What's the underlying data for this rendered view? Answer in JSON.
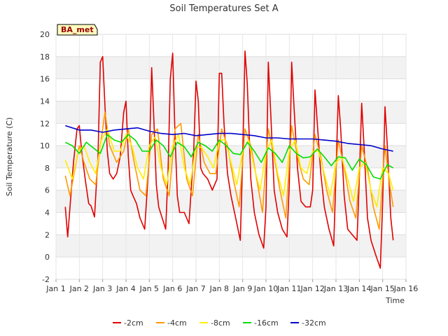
{
  "chart_data": {
    "type": "line",
    "title": "Soil Temperatures Set A",
    "xlabel": "Time",
    "ylabel": "Soil Temperature (C)",
    "badge": "BA_met",
    "xlim": [
      1,
      16
    ],
    "ylim": [
      -2,
      20
    ],
    "xticks": [
      {
        "v": 1,
        "label": "Jan 1"
      },
      {
        "v": 2,
        "label": "Jan 2"
      },
      {
        "v": 3,
        "label": "Jan 3"
      },
      {
        "v": 4,
        "label": "Jan 4"
      },
      {
        "v": 5,
        "label": "Jan 5"
      },
      {
        "v": 6,
        "label": "Jan 6"
      },
      {
        "v": 7,
        "label": "Jan 7"
      },
      {
        "v": 8,
        "label": "Jan 8"
      },
      {
        "v": 9,
        "label": "Jan 9"
      },
      {
        "v": 10,
        "label": "Jan 10"
      },
      {
        "v": 11,
        "label": "Jan 11"
      },
      {
        "v": 12,
        "label": "Jan 12"
      },
      {
        "v": 13,
        "label": "Jan 13"
      },
      {
        "v": 14,
        "label": "Jan 14"
      },
      {
        "v": 15,
        "label": "Jan 15"
      },
      {
        "v": 16,
        "label": "Jan 16"
      }
    ],
    "yticks": [
      -2,
      0,
      2,
      4,
      6,
      8,
      10,
      12,
      14,
      16,
      18,
      20
    ],
    "grid": true,
    "legend": "bottom",
    "series": [
      {
        "name": "-2cm",
        "color": "#e00000",
        "x": [
          1.4,
          1.5,
          1.6,
          1.75,
          1.9,
          2.0,
          2.1,
          2.25,
          2.4,
          2.5,
          2.65,
          2.8,
          2.9,
          3.0,
          3.1,
          3.2,
          3.3,
          3.45,
          3.6,
          3.75,
          3.9,
          4.0,
          4.1,
          4.2,
          4.3,
          4.45,
          4.6,
          4.8,
          5.0,
          5.1,
          5.2,
          5.3,
          5.4,
          5.55,
          5.7,
          5.8,
          5.9,
          6.0,
          6.1,
          6.2,
          6.3,
          6.5,
          6.7,
          6.9,
          7.0,
          7.1,
          7.2,
          7.3,
          7.5,
          7.7,
          7.9,
          8.0,
          8.1,
          8.2,
          8.35,
          8.5,
          8.7,
          8.9,
          9.0,
          9.1,
          9.2,
          9.35,
          9.5,
          9.7,
          9.9,
          10.0,
          10.1,
          10.2,
          10.35,
          10.5,
          10.7,
          10.9,
          11.0,
          11.1,
          11.2,
          11.35,
          11.5,
          11.7,
          11.9,
          12.0,
          12.1,
          12.2,
          12.35,
          12.5,
          12.7,
          12.9,
          13.0,
          13.1,
          13.2,
          13.35,
          13.5,
          13.7,
          13.9,
          14.0,
          14.1,
          14.2,
          14.35,
          14.5,
          14.7,
          14.9,
          15.0,
          15.1,
          15.2,
          15.35,
          15.45
        ],
        "y": [
          4.5,
          1.8,
          4.5,
          8.5,
          11.5,
          11.8,
          9.5,
          7.0,
          4.8,
          4.6,
          3.6,
          9.0,
          17.5,
          18.0,
          13.5,
          9.5,
          7.5,
          7.0,
          7.5,
          9.0,
          13.0,
          14.0,
          9.0,
          6.0,
          5.5,
          4.8,
          3.5,
          2.5,
          9.0,
          17.0,
          12.0,
          6.5,
          4.5,
          3.5,
          2.5,
          7.5,
          16.0,
          18.3,
          11.0,
          5.5,
          4.0,
          4.0,
          3.0,
          9.5,
          15.8,
          14.0,
          8.0,
          7.5,
          7.0,
          6.0,
          7.0,
          16.5,
          16.5,
          12.0,
          7.5,
          5.5,
          3.5,
          1.5,
          9.0,
          18.5,
          15.5,
          7.0,
          4.0,
          2.0,
          0.8,
          4.5,
          17.5,
          13.0,
          6.0,
          4.0,
          2.5,
          1.8,
          6.5,
          17.5,
          13.5,
          8.0,
          5.0,
          4.5,
          4.5,
          6.0,
          15.0,
          12.0,
          7.5,
          4.5,
          2.5,
          1.0,
          7.5,
          14.5,
          11.5,
          5.5,
          2.5,
          2.0,
          1.5,
          7.0,
          13.8,
          10.0,
          3.5,
          1.5,
          0.2,
          -1.0,
          5.0,
          13.5,
          10.0,
          3.5,
          1.5
        ]
      },
      {
        "name": "-4cm",
        "color": "#ff9900",
        "x": [
          1.4,
          1.6,
          1.8,
          2.0,
          2.2,
          2.45,
          2.7,
          2.9,
          3.1,
          3.3,
          3.6,
          3.9,
          4.1,
          4.35,
          4.6,
          4.85,
          5.1,
          5.35,
          5.6,
          5.85,
          6.1,
          6.35,
          6.6,
          6.85,
          7.1,
          7.35,
          7.6,
          7.85,
          8.1,
          8.35,
          8.6,
          8.85,
          9.1,
          9.35,
          9.6,
          9.85,
          10.1,
          10.35,
          10.6,
          10.85,
          11.1,
          11.35,
          11.6,
          11.85,
          12.1,
          12.35,
          12.6,
          12.85,
          13.1,
          13.35,
          13.6,
          13.85,
          14.1,
          14.35,
          14.6,
          14.85,
          15.1,
          15.3,
          15.45
        ],
        "y": [
          7.3,
          5.5,
          7.8,
          10.0,
          8.5,
          7.0,
          6.5,
          10.0,
          13.0,
          10.0,
          8.5,
          9.5,
          11.5,
          8.5,
          6.0,
          5.5,
          11.0,
          11.5,
          7.0,
          5.5,
          11.5,
          12.0,
          7.0,
          5.5,
          11.0,
          8.5,
          7.5,
          7.5,
          11.5,
          10.0,
          7.0,
          4.5,
          11.5,
          10.0,
          7.0,
          4.0,
          11.5,
          9.0,
          6.0,
          3.5,
          11.8,
          9.0,
          7.0,
          6.5,
          11.0,
          9.0,
          6.0,
          4.0,
          10.5,
          8.0,
          5.0,
          3.5,
          10.0,
          8.0,
          4.5,
          2.5,
          10.0,
          6.5,
          4.5
        ]
      },
      {
        "name": "-8cm",
        "color": "#ffee00",
        "x": [
          1.4,
          1.7,
          1.95,
          2.2,
          2.45,
          2.7,
          2.95,
          3.2,
          3.5,
          3.75,
          4.0,
          4.25,
          4.5,
          4.75,
          5.0,
          5.25,
          5.5,
          5.75,
          6.0,
          6.25,
          6.5,
          6.75,
          7.0,
          7.25,
          7.5,
          7.75,
          8.0,
          8.25,
          8.5,
          8.75,
          9.0,
          9.25,
          9.5,
          9.75,
          10.0,
          10.25,
          10.5,
          10.75,
          11.0,
          11.25,
          11.5,
          11.75,
          12.0,
          12.25,
          12.5,
          12.75,
          13.0,
          13.25,
          13.5,
          13.75,
          14.0,
          14.25,
          14.5,
          14.75,
          15.0,
          15.25,
          15.45
        ],
        "y": [
          8.7,
          7.0,
          9.5,
          10.0,
          8.5,
          7.5,
          10.5,
          11.5,
          9.5,
          9.5,
          11.0,
          10.0,
          8.0,
          7.0,
          10.0,
          10.8,
          8.0,
          6.5,
          10.0,
          11.0,
          8.0,
          6.5,
          10.0,
          9.8,
          9.0,
          8.0,
          10.5,
          10.5,
          8.5,
          6.5,
          9.5,
          10.5,
          8.0,
          6.0,
          9.5,
          10.5,
          7.5,
          5.5,
          9.5,
          10.5,
          8.0,
          7.5,
          9.5,
          9.5,
          7.5,
          5.5,
          8.5,
          9.0,
          7.0,
          5.0,
          8.0,
          8.5,
          6.0,
          4.5,
          8.0,
          7.5,
          6.0
        ]
      },
      {
        "name": "-16cm",
        "color": "#00dd00",
        "x": [
          1.4,
          1.7,
          2.0,
          2.3,
          2.6,
          2.9,
          3.2,
          3.5,
          3.8,
          4.1,
          4.4,
          4.7,
          5.0,
          5.3,
          5.6,
          5.9,
          6.2,
          6.5,
          6.8,
          7.1,
          7.4,
          7.7,
          8.0,
          8.3,
          8.6,
          8.9,
          9.2,
          9.5,
          9.8,
          10.1,
          10.4,
          10.7,
          11.0,
          11.3,
          11.6,
          11.9,
          12.2,
          12.5,
          12.8,
          13.1,
          13.4,
          13.7,
          14.0,
          14.3,
          14.6,
          14.9,
          15.2,
          15.45
        ],
        "y": [
          10.3,
          10.0,
          9.3,
          10.3,
          9.8,
          9.3,
          11.0,
          10.5,
          10.3,
          11.0,
          10.5,
          9.5,
          9.5,
          10.5,
          10.0,
          9.0,
          10.3,
          9.9,
          9.0,
          10.3,
          10.0,
          9.5,
          10.5,
          10.0,
          9.3,
          9.2,
          10.3,
          9.5,
          8.5,
          9.8,
          9.3,
          8.5,
          10.0,
          9.3,
          8.9,
          9.0,
          9.7,
          9.0,
          8.2,
          9.0,
          8.9,
          7.8,
          8.8,
          8.3,
          7.2,
          7.0,
          8.3,
          8.0
        ]
      },
      {
        "name": "-32cm",
        "color": "#0000cc",
        "x": [
          1.4,
          2.0,
          2.5,
          3.0,
          3.5,
          4.0,
          4.5,
          5.0,
          5.5,
          6.0,
          6.5,
          7.0,
          7.5,
          8.0,
          8.5,
          9.0,
          9.5,
          10.0,
          10.5,
          11.0,
          11.5,
          12.0,
          12.5,
          13.0,
          13.5,
          14.0,
          14.5,
          15.0,
          15.45
        ],
        "y": [
          11.8,
          11.4,
          11.4,
          11.2,
          11.4,
          11.5,
          11.6,
          11.3,
          11.1,
          11.0,
          11.1,
          10.9,
          11.0,
          11.1,
          11.1,
          11.0,
          10.9,
          10.7,
          10.7,
          10.6,
          10.6,
          10.6,
          10.5,
          10.4,
          10.2,
          10.1,
          10.0,
          9.7,
          9.5
        ]
      }
    ]
  }
}
